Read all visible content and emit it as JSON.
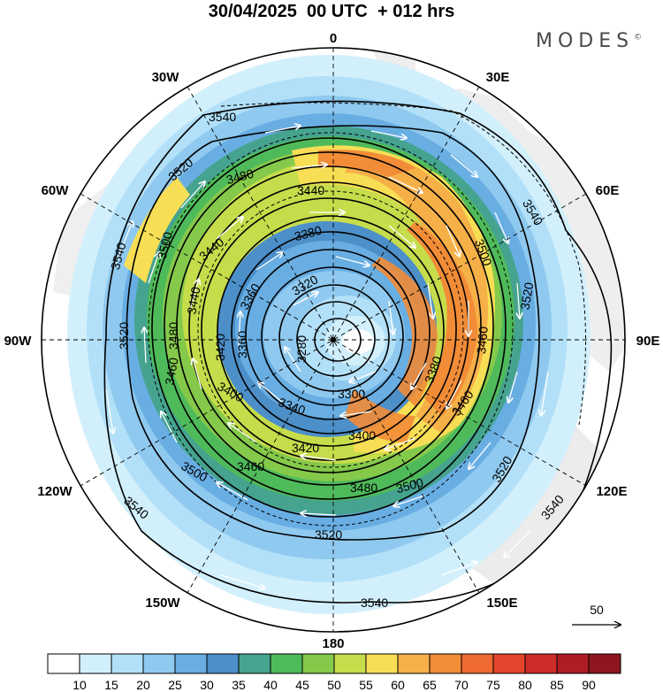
{
  "title": "30/04/2025  00 UTC  + 012 hrs",
  "brand": "MODES",
  "brand_mark": "©",
  "longitude_labels": {
    "n0": "0",
    "n30w": "30W",
    "n30e": "30E",
    "n60w": "60W",
    "n60e": "60E",
    "n90w": "90W",
    "n90e": "90E",
    "n120w": "120W",
    "n120e": "120E",
    "n150w": "150W",
    "n150e": "150E",
    "n180": "180"
  },
  "contour_labels": {
    "c3540": "3540",
    "c3520": "3520",
    "c3500": "3500",
    "c3480": "3480",
    "c3460": "3460",
    "c3440": "3440",
    "c3420": "3420",
    "c3400": "3400",
    "c3380": "3380",
    "c3360": "3360",
    "c3340": "3340",
    "c3320": "3320",
    "c3300": "3300",
    "c3280": "3280"
  },
  "reference_vector": {
    "label": "50"
  },
  "colorbar": {
    "colors": [
      "#ffffff",
      "#d2f0fc",
      "#b2e0f8",
      "#8fc9ef",
      "#68aee3",
      "#4c8fc9",
      "#45a38f",
      "#4fba5a",
      "#85c94b",
      "#c6dc4b",
      "#f7de55",
      "#f6b048",
      "#f28c37",
      "#ee6a32",
      "#e3452d",
      "#cc2d2a",
      "#b01c23",
      "#8e1620"
    ],
    "ticks": [
      "10",
      "15",
      "20",
      "25",
      "30",
      "35",
      "40",
      "45",
      "50",
      "55",
      "60",
      "65",
      "70",
      "75",
      "80",
      "85",
      "90"
    ]
  }
}
